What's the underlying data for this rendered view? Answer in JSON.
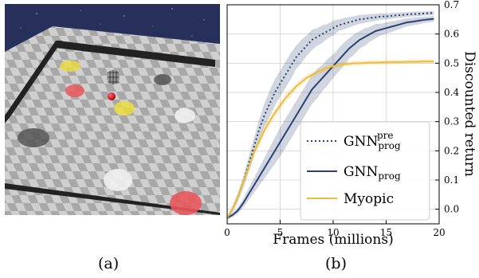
{
  "panel_a": {
    "caption": "(a)",
    "colors": {
      "sky": "#27305a",
      "floor_light": "#cfcfcf",
      "floor_dark": "#a8a8a8",
      "wall": "#222222",
      "red_zone": "#e8585c",
      "yellow_zone": "#ecdc3c",
      "grey_zone": "#555555",
      "white_zone": "#f0f0f0",
      "agent": "#e0101e"
    }
  },
  "panel_b": {
    "caption": "(b)",
    "chart_data": {
      "type": "line",
      "title": "",
      "xlabel": "Frames (millions)",
      "ylabel": "Discounted return",
      "xlim": [
        0,
        20
      ],
      "ylim": [
        -0.05,
        0.7
      ],
      "xticks": [
        "0",
        "5",
        "10",
        "15",
        "20"
      ],
      "yticks": [
        "0.0",
        "0.1",
        "0.2",
        "0.3",
        "0.4",
        "0.5",
        "0.6",
        "0.7"
      ],
      "grid": true,
      "legend_position": "lower-right",
      "series": [
        {
          "name": "GNN_prog^pre",
          "legend_base": "GNN",
          "legend_sub": "prog",
          "legend_sup": "pre",
          "color": "#2b4172",
          "style": "dotted",
          "x": [
            0,
            0.5,
            1,
            1.5,
            2,
            2.5,
            3,
            3.5,
            4,
            4.5,
            5,
            5.5,
            6,
            6.5,
            7,
            7.5,
            8,
            8.5,
            9,
            9.5,
            10,
            10.5,
            11,
            11.5,
            12,
            12.5,
            13,
            13.5,
            14,
            14.5,
            15,
            15.5,
            16,
            16.5,
            17,
            17.5,
            18,
            18.5,
            19,
            19.5
          ],
          "y": [
            -0.03,
            0.0,
            0.04,
            0.09,
            0.15,
            0.21,
            0.27,
            0.32,
            0.36,
            0.4,
            0.43,
            0.46,
            0.49,
            0.52,
            0.54,
            0.56,
            0.58,
            0.59,
            0.6,
            0.61,
            0.62,
            0.63,
            0.635,
            0.64,
            0.645,
            0.65,
            0.652,
            0.655,
            0.657,
            0.66,
            0.66,
            0.662,
            0.664,
            0.665,
            0.667,
            0.668,
            0.669,
            0.67,
            0.671,
            0.672
          ],
          "band": [
            0.005,
            0.01,
            0.015,
            0.02,
            0.025,
            0.03,
            0.035,
            0.04,
            0.045,
            0.045,
            0.045,
            0.045,
            0.045,
            0.04,
            0.04,
            0.035,
            0.035,
            0.03,
            0.03,
            0.025,
            0.025,
            0.02,
            0.02,
            0.018,
            0.016,
            0.015,
            0.014,
            0.013,
            0.012,
            0.011,
            0.01,
            0.01,
            0.009,
            0.009,
            0.008,
            0.008,
            0.008,
            0.007,
            0.007,
            0.007
          ]
        },
        {
          "name": "GNN_prog",
          "legend_base": "GNN",
          "legend_sub": "prog",
          "legend_sup": "",
          "color": "#2b4172",
          "style": "solid",
          "x": [
            0,
            0.5,
            1,
            1.5,
            2,
            2.5,
            3,
            3.5,
            4,
            4.5,
            5,
            5.5,
            6,
            6.5,
            7,
            7.5,
            8,
            8.5,
            9,
            9.5,
            10,
            10.5,
            11,
            11.5,
            12,
            12.5,
            13,
            13.5,
            14,
            14.5,
            15,
            15.5,
            16,
            16.5,
            17,
            17.5,
            18,
            18.5,
            19,
            19.5
          ],
          "y": [
            -0.03,
            -0.02,
            -0.005,
            0.02,
            0.05,
            0.08,
            0.11,
            0.14,
            0.17,
            0.2,
            0.23,
            0.26,
            0.29,
            0.32,
            0.35,
            0.38,
            0.41,
            0.43,
            0.45,
            0.47,
            0.49,
            0.51,
            0.53,
            0.55,
            0.565,
            0.58,
            0.59,
            0.6,
            0.61,
            0.615,
            0.62,
            0.625,
            0.63,
            0.635,
            0.64,
            0.642,
            0.645,
            0.648,
            0.65,
            0.652
          ],
          "band": [
            0.005,
            0.008,
            0.01,
            0.015,
            0.02,
            0.025,
            0.03,
            0.035,
            0.04,
            0.045,
            0.05,
            0.05,
            0.05,
            0.05,
            0.05,
            0.05,
            0.05,
            0.05,
            0.045,
            0.045,
            0.04,
            0.04,
            0.04,
            0.035,
            0.035,
            0.03,
            0.03,
            0.025,
            0.025,
            0.02,
            0.02,
            0.018,
            0.016,
            0.015,
            0.014,
            0.013,
            0.012,
            0.011,
            0.01,
            0.01
          ]
        },
        {
          "name": "Myopic",
          "legend_base": "Myopic",
          "legend_sub": "",
          "legend_sup": "",
          "color": "#ecbc3c",
          "style": "solid",
          "x": [
            0,
            0.5,
            1,
            1.5,
            2,
            2.5,
            3,
            3.5,
            4,
            4.5,
            5,
            5.5,
            6,
            6.5,
            7,
            7.5,
            8,
            8.5,
            9,
            9.5,
            10,
            10.5,
            11,
            11.5,
            12,
            12.5,
            13,
            13.5,
            14,
            14.5,
            15,
            15.5,
            16,
            16.5,
            17,
            17.5,
            18,
            18.5,
            19,
            19.5
          ],
          "y": [
            -0.03,
            0.0,
            0.04,
            0.09,
            0.14,
            0.19,
            0.23,
            0.27,
            0.3,
            0.33,
            0.355,
            0.38,
            0.4,
            0.42,
            0.435,
            0.45,
            0.46,
            0.47,
            0.477,
            0.484,
            0.49,
            0.493,
            0.496,
            0.498,
            0.5,
            0.5,
            0.501,
            0.502,
            0.502,
            0.503,
            0.503,
            0.504,
            0.504,
            0.504,
            0.505,
            0.505,
            0.505,
            0.506,
            0.506,
            0.506
          ],
          "band": [
            0.005,
            0.01,
            0.012,
            0.015,
            0.015,
            0.015,
            0.015,
            0.015,
            0.015,
            0.015,
            0.015,
            0.015,
            0.014,
            0.013,
            0.012,
            0.011,
            0.01,
            0.01,
            0.01,
            0.009,
            0.009,
            0.009,
            0.008,
            0.008,
            0.008,
            0.008,
            0.008,
            0.008,
            0.008,
            0.008,
            0.008,
            0.008,
            0.008,
            0.008,
            0.008,
            0.008,
            0.008,
            0.008,
            0.008,
            0.008
          ]
        }
      ]
    }
  }
}
